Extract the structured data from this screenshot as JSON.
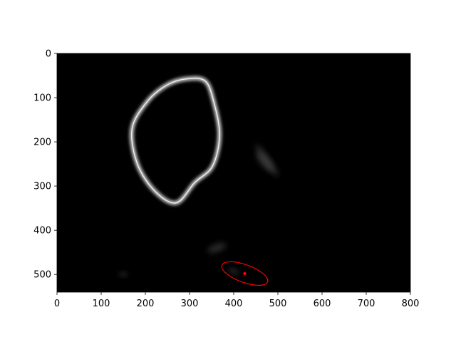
{
  "chart_data": {
    "type": "image",
    "title": "",
    "xlabel": "",
    "ylabel": "",
    "xlim": [
      0,
      800
    ],
    "ylim": [
      540,
      0
    ],
    "x_ticks": [
      0,
      100,
      200,
      300,
      400,
      500,
      600,
      700,
      800
    ],
    "y_ticks": [
      0,
      100,
      200,
      300,
      400,
      500
    ],
    "grid": false,
    "background_color": "#000000",
    "ring": {
      "color": "#e8e8e8",
      "points": [
        [
          290,
          58
        ],
        [
          335,
          62
        ],
        [
          355,
          110
        ],
        [
          368,
          185
        ],
        [
          352,
          255
        ],
        [
          312,
          292
        ],
        [
          270,
          338
        ],
        [
          222,
          312
        ],
        [
          182,
          250
        ],
        [
          170,
          170
        ],
        [
          205,
          108
        ],
        [
          248,
          72
        ]
      ]
    },
    "faint_blobs": [
      {
        "cx": 470,
        "cy": 245,
        "rx": 28,
        "ry": 10,
        "rotation": 50
      },
      {
        "cx": 475,
        "cy": 242,
        "rx": 44,
        "ry": 8,
        "rotation": 55
      },
      {
        "cx": 362,
        "cy": 440,
        "rx": 22,
        "ry": 9,
        "rotation": -20
      },
      {
        "cx": 150,
        "cy": 500,
        "rx": 10,
        "ry": 5,
        "rotation": 0
      },
      {
        "cx": 400,
        "cy": 493,
        "rx": 13,
        "ry": 6,
        "rotation": 25
      }
    ],
    "ellipse": {
      "cx": 425,
      "cy": 498,
      "rx": 55,
      "ry": 20,
      "rotation": 20,
      "color": "#ff0000"
    },
    "center_point": {
      "x": 425,
      "y": 498,
      "color": "#ff0000"
    }
  }
}
